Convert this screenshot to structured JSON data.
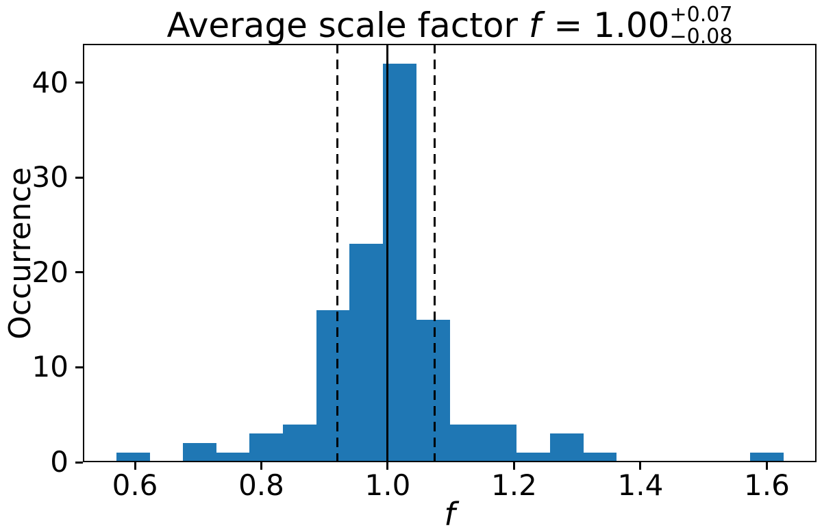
{
  "figure": {
    "title": {
      "prefix": "Average scale factor ",
      "variable": "f",
      "equals": " = 1.00",
      "superscript": "+0.07",
      "subscript": "−0.08"
    },
    "xlabel": "f",
    "ylabel": "Occurrence"
  },
  "chart_data": {
    "type": "bar",
    "subtype": "histogram",
    "title": "Average scale factor f = 1.00 +0.07/−0.08",
    "xlabel": "f",
    "ylabel": "Occurrence",
    "grid": false,
    "legend": false,
    "bar_color": "#1f77b4",
    "line_color": "#000000",
    "xlim": [
      0.5176,
      1.6787
    ],
    "ylim": [
      0,
      44.1
    ],
    "xticks": {
      "values": [
        0.6,
        0.8,
        1.0,
        1.2,
        1.4,
        1.6
      ],
      "labels": [
        "0.6",
        "0.8",
        "1.0",
        "1.2",
        "1.4",
        "1.6"
      ]
    },
    "yticks": {
      "values": [
        0,
        10,
        20,
        30,
        40
      ],
      "labels": [
        "0",
        "10",
        "20",
        "30",
        "40"
      ]
    },
    "bins": {
      "start": 0.5704,
      "width": 0.05278,
      "counts": [
        1,
        0,
        2,
        1,
        3,
        4,
        16,
        23,
        42,
        15,
        4,
        4,
        1,
        3,
        1,
        0,
        0,
        0,
        0,
        1
      ]
    },
    "vlines": [
      {
        "name": "median-line",
        "f": 1.0,
        "style": "solid"
      },
      {
        "name": "lower-percentile-line",
        "f": 0.9207,
        "style": "dashed"
      },
      {
        "name": "upper-percentile-line",
        "f": 1.0747,
        "style": "dashed"
      }
    ]
  }
}
